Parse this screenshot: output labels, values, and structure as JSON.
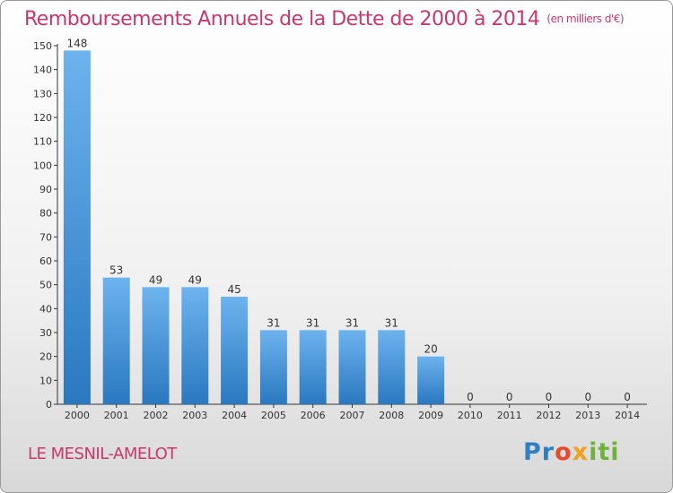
{
  "header": {
    "title": "Remboursements Annuels de la Dette de 2000 à 2014",
    "unit": "(en milliers d'€)"
  },
  "footer": {
    "commune": "LE MESNIL-AMELOT"
  },
  "logo": {
    "parts": [
      "Pr",
      "o",
      "x",
      "iti"
    ]
  },
  "colors": {
    "title": "#c8386e",
    "bar_light": "#6db3ee",
    "bar_dark": "#2a78c0"
  },
  "chart_data": {
    "type": "bar",
    "title": "Remboursements Annuels de la Dette de 2000 à 2014",
    "categories": [
      "2000",
      "2001",
      "2002",
      "2003",
      "2004",
      "2005",
      "2006",
      "2007",
      "2008",
      "2009",
      "2010",
      "2011",
      "2012",
      "2013",
      "2014"
    ],
    "values": [
      148,
      53,
      49,
      49,
      45,
      31,
      31,
      31,
      31,
      20,
      0,
      0,
      0,
      0,
      0
    ],
    "ylim": [
      0,
      150
    ],
    "yticks": [
      0,
      10,
      20,
      30,
      40,
      50,
      60,
      70,
      80,
      90,
      100,
      110,
      120,
      130,
      140,
      150
    ],
    "xlabel": "",
    "ylabel": "",
    "grid": false,
    "legend": "none"
  }
}
